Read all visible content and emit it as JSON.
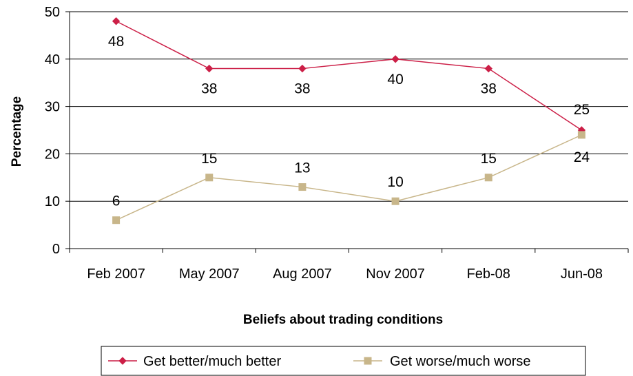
{
  "chart_data": {
    "type": "line",
    "categories": [
      "Feb 2007",
      "May 2007",
      "Aug 2007",
      "Nov 2007",
      "Feb-08",
      "Jun-08"
    ],
    "series": [
      {
        "name": "Get better/much better",
        "values": [
          48,
          38,
          38,
          40,
          38,
          25
        ],
        "color": "#CC1F47",
        "marker": "diamond"
      },
      {
        "name": "Get worse/much worse",
        "values": [
          6,
          15,
          13,
          10,
          15,
          24
        ],
        "color": "#C8B68A",
        "marker": "square"
      }
    ],
    "xlabel": "Beliefs about trading conditions",
    "ylabel": "Percentage",
    "ylim": [
      0,
      50
    ],
    "yticks": [
      0,
      10,
      20,
      30,
      40,
      50
    ],
    "grid": true,
    "legend": "bottom",
    "data_labels": true
  }
}
